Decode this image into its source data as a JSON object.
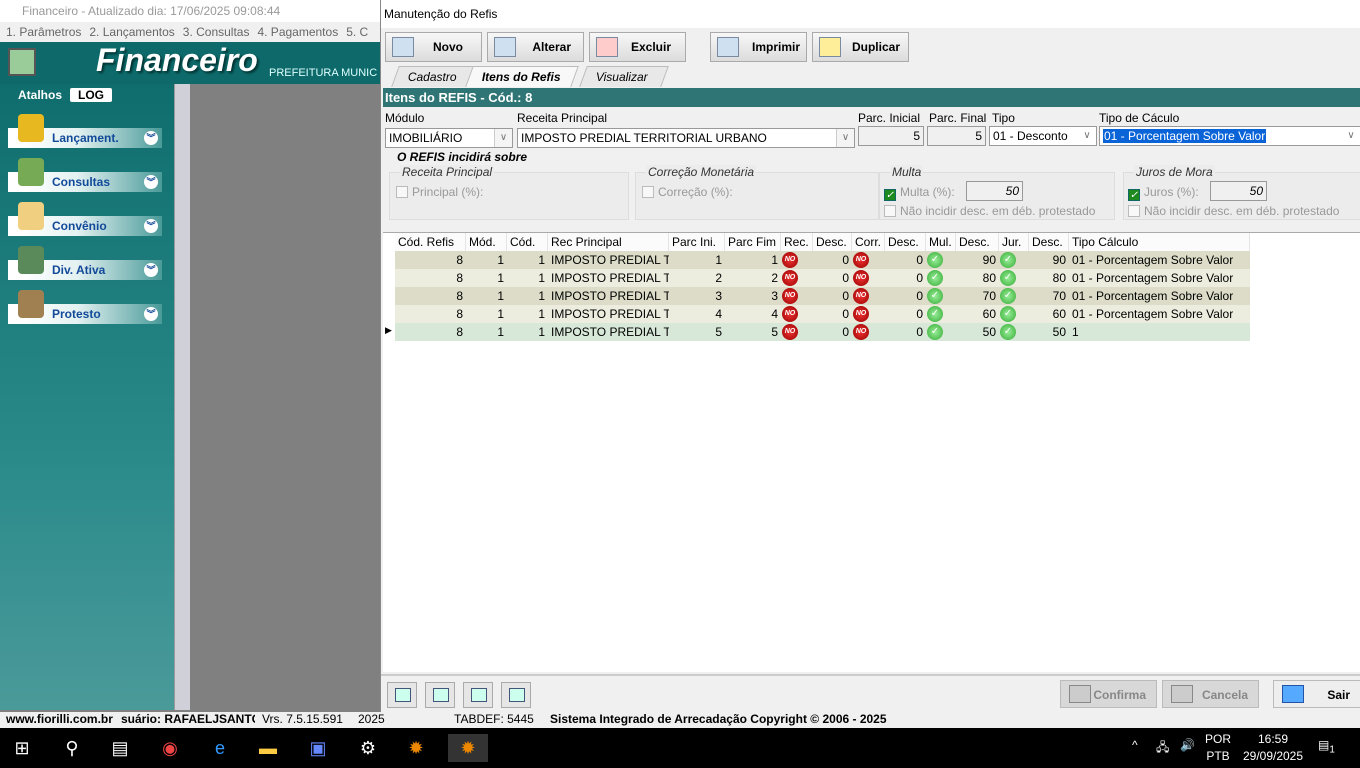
{
  "app": {
    "title": "Financeiro - Atualizado dia: 17/06/2025 09:08:44",
    "menu": [
      "1. Parâmetros",
      "2. Lançamentos",
      "3. Consultas",
      "4. Pagamentos",
      "5. C"
    ],
    "logo": "Financeiro",
    "subtitle": "PREFEITURA MUNIC"
  },
  "sidebar": {
    "tab_atalhos": "Atalhos",
    "tab_log": "LOG",
    "items": [
      {
        "label": "Lançament.",
        "icon": "coins-icon"
      },
      {
        "label": "Consultas",
        "icon": "binoculars-icon"
      },
      {
        "label": "Convênio",
        "icon": "folder-icon"
      },
      {
        "label": "Div. Ativa",
        "icon": "book-icon"
      },
      {
        "label": "Protesto",
        "icon": "stamp-icon"
      }
    ]
  },
  "dialog": {
    "title": "Manutenção do Refis",
    "toolbar": {
      "novo": "Novo",
      "alterar": "Alterar",
      "excluir": "Excluir",
      "imprimir": "Imprimir",
      "duplicar": "Duplicar"
    },
    "tabs": [
      "Cadastro",
      "Itens do Refis",
      "Visualizar"
    ],
    "active_tab": "Itens do Refis",
    "header": "Itens do REFIS - Cód.:  8",
    "form": {
      "modulo_label": "Módulo",
      "modulo": "IMOBILIÁRIO",
      "receita_label": "Receita Principal",
      "receita": "IMPOSTO PREDIAL TERRITORIAL URBANO",
      "parc_ini_label": "Parc. Inicial",
      "parc_ini": "5",
      "parc_fim_label": "Parc. Final",
      "parc_fim": "5",
      "tipo_label": "Tipo",
      "tipo": "01 - Desconto",
      "calc_label": "Tipo de Cáculo",
      "calc": "01 - Porcentagem Sobre Valor"
    },
    "incidencia": {
      "title": "O REFIS incidirá sobre",
      "receita": {
        "title": "Receita Principal",
        "check": "Principal (%):",
        "checked": false
      },
      "correcao": {
        "title": "Correção Monetária",
        "check": "Correção (%):",
        "checked": false
      },
      "multa": {
        "title": "Multa",
        "check": "Multa (%):",
        "checked": true,
        "value": "50",
        "protest": "Não incidir desc. em déb. protestado"
      },
      "juros": {
        "title": "Juros de Mora",
        "check": "Juros (%):",
        "checked": true,
        "value": "50",
        "protest": "Não incidir desc. em déb. protestado"
      }
    },
    "grid": {
      "columns": [
        "Cód. Refis",
        "Mód.",
        "Cód.",
        "Rec Principal",
        "Parc Ini.",
        "Parc Fim",
        "Rec.",
        "Desc.",
        "Corr.",
        "Desc.",
        "Mul.",
        "Desc.",
        "Jur.",
        "Desc.",
        "Tipo Cálculo"
      ],
      "rows": [
        [
          "8",
          "1",
          "1",
          "IMPOSTO PREDIAL T",
          "1",
          "1",
          "no",
          "0",
          "no",
          "0",
          "yes",
          "90",
          "yes",
          "90",
          "01 - Porcentagem Sobre Valor"
        ],
        [
          "8",
          "1",
          "1",
          "IMPOSTO PREDIAL T",
          "2",
          "2",
          "no",
          "0",
          "no",
          "0",
          "yes",
          "80",
          "yes",
          "80",
          "01 - Porcentagem Sobre Valor"
        ],
        [
          "8",
          "1",
          "1",
          "IMPOSTO PREDIAL T",
          "3",
          "3",
          "no",
          "0",
          "no",
          "0",
          "yes",
          "70",
          "yes",
          "70",
          "01 - Porcentagem Sobre Valor"
        ],
        [
          "8",
          "1",
          "1",
          "IMPOSTO PREDIAL T",
          "4",
          "4",
          "no",
          "0",
          "no",
          "0",
          "yes",
          "60",
          "yes",
          "60",
          "01 - Porcentagem Sobre Valor"
        ],
        [
          "8",
          "1",
          "1",
          "IMPOSTO PREDIAL T",
          "5",
          "5",
          "no",
          "0",
          "no",
          "0",
          "yes",
          "50",
          "yes",
          "50",
          "1"
        ]
      ],
      "current_row": 4,
      "no_icon_text": "NO"
    },
    "bottom": {
      "confirma": "Confirma",
      "cancela": "Cancela",
      "sair": "Sair"
    }
  },
  "status": {
    "site": "www.fiorilli.com.br",
    "user": "suário: RAFAELJSANTC",
    "version": "Vrs. 7.5.15.591",
    "year": "2025",
    "tabdef": "TABDEF: 5445",
    "copyright": "Sistema Integrado de Arrecadação Copyright © 2006 - 2025"
  },
  "taskbar": {
    "lang1": "POR",
    "lang2": "PTB",
    "time": "16:59",
    "date": "29/09/2025",
    "notif": "1"
  },
  "colors": {
    "teal": "#0e6a6a",
    "header": "#2f7575",
    "selection": "#0a64d8"
  }
}
